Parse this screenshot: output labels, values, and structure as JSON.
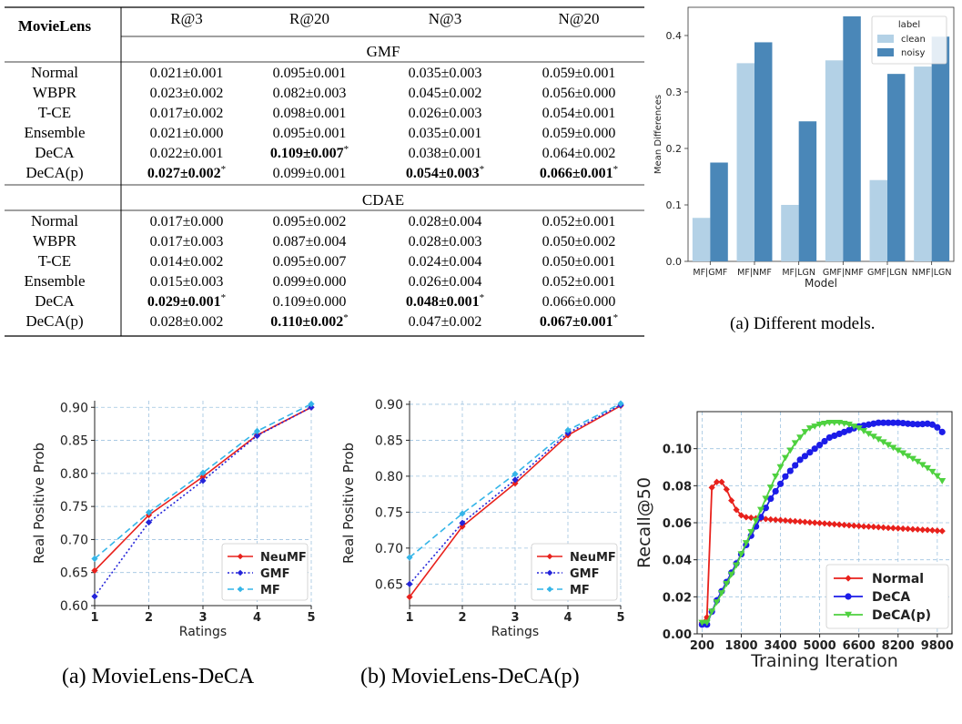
{
  "table": {
    "dataset": "MovieLens",
    "columns": [
      "R@3",
      "R@20",
      "N@3",
      "N@20"
    ],
    "sections": [
      {
        "name": "GMF",
        "rows": [
          {
            "method": "Normal",
            "cells": [
              {
                "v": "0.021±0.001"
              },
              {
                "v": "0.095±0.001"
              },
              {
                "v": "0.035±0.003"
              },
              {
                "v": "0.059±0.001"
              }
            ]
          },
          {
            "method": "WBPR",
            "cells": [
              {
                "v": "0.023±0.002"
              },
              {
                "v": "0.082±0.003"
              },
              {
                "v": "0.045±0.002"
              },
              {
                "v": "0.056±0.000"
              }
            ]
          },
          {
            "method": "T-CE",
            "cells": [
              {
                "v": "0.017±0.002"
              },
              {
                "v": "0.098±0.001"
              },
              {
                "v": "0.026±0.003"
              },
              {
                "v": "0.054±0.001"
              }
            ]
          },
          {
            "method": "Ensemble",
            "cells": [
              {
                "v": "0.021±0.000"
              },
              {
                "v": "0.095±0.001"
              },
              {
                "v": "0.035±0.001"
              },
              {
                "v": "0.059±0.000"
              }
            ]
          },
          {
            "method": "DeCA",
            "cells": [
              {
                "v": "0.022±0.001"
              },
              {
                "v": "0.109±0.007",
                "bold": true,
                "star": "*"
              },
              {
                "v": "0.038±0.001"
              },
              {
                "v": "0.064±0.002"
              }
            ]
          },
          {
            "method": "DeCA(p)",
            "cells": [
              {
                "v": "0.027±0.002",
                "bold": true,
                "star": "*"
              },
              {
                "v": "0.099±0.001"
              },
              {
                "v": "0.054±0.003",
                "bold": true,
                "star": "*"
              },
              {
                "v": "0.066±0.001",
                "bold": true,
                "star": "*"
              }
            ]
          }
        ]
      },
      {
        "name": "CDAE",
        "rows": [
          {
            "method": "Normal",
            "cells": [
              {
                "v": "0.017±0.000"
              },
              {
                "v": "0.095±0.002"
              },
              {
                "v": "0.028±0.004"
              },
              {
                "v": "0.052±0.001"
              }
            ]
          },
          {
            "method": "WBPR",
            "cells": [
              {
                "v": "0.017±0.003"
              },
              {
                "v": "0.087±0.004"
              },
              {
                "v": "0.028±0.003"
              },
              {
                "v": "0.050±0.002"
              }
            ]
          },
          {
            "method": "T-CE",
            "cells": [
              {
                "v": "0.014±0.002"
              },
              {
                "v": "0.095±0.007"
              },
              {
                "v": "0.024±0.004"
              },
              {
                "v": "0.050±0.001"
              }
            ]
          },
          {
            "method": "Ensemble",
            "cells": [
              {
                "v": "0.015±0.003"
              },
              {
                "v": "0.099±0.000"
              },
              {
                "v": "0.026±0.004"
              },
              {
                "v": "0.052±0.001"
              }
            ]
          },
          {
            "method": "DeCA",
            "cells": [
              {
                "v": "0.029±0.001",
                "bold": true,
                "star": "*"
              },
              {
                "v": "0.109±0.000"
              },
              {
                "v": "0.048±0.001",
                "bold": true,
                "star": "*"
              },
              {
                "v": "0.066±0.000"
              }
            ]
          },
          {
            "method": "DeCA(p)",
            "cells": [
              {
                "v": "0.028±0.002"
              },
              {
                "v": "0.110±0.002",
                "bold": true,
                "star": "*"
              },
              {
                "v": "0.047±0.002"
              },
              {
                "v": "0.067±0.001",
                "bold": true,
                "star": "*"
              }
            ]
          }
        ]
      }
    ]
  },
  "captions": {
    "fig_models": "(a)  Different models.",
    "fig_deca": "(a)  MovieLens-DeCA",
    "fig_decap": "(b)  MovieLens-DeCA(p)"
  },
  "chart_data": [
    {
      "type": "bar",
      "xlabel": "Model",
      "ylabel": "Mean Differences",
      "legend_title": "label",
      "legend_position": "top-right",
      "categories": [
        "MF|GMF",
        "MF|NMF",
        "MF|LGN",
        "GMF|NMF",
        "GMF|LGN",
        "NMF|LGN"
      ],
      "series": [
        {
          "name": "clean",
          "color": "#b3d1e6",
          "values": [
            0.077,
            0.351,
            0.1,
            0.356,
            0.144,
            0.345
          ]
        },
        {
          "name": "noisy",
          "color": "#4a87b8",
          "values": [
            0.175,
            0.388,
            0.248,
            0.434,
            0.332,
            0.398
          ]
        }
      ],
      "ylim": [
        0,
        0.45
      ],
      "yticks": [
        0.0,
        0.1,
        0.2,
        0.3,
        0.4
      ],
      "grid": false
    },
    {
      "type": "line",
      "xlabel": "Ratings",
      "ylabel": "Real Positive Prob",
      "x": [
        1,
        2,
        3,
        4,
        5
      ],
      "xticks": [
        1,
        2,
        3,
        4,
        5
      ],
      "ylim": [
        0.6,
        0.91
      ],
      "yticks": [
        0.6,
        0.65,
        0.7,
        0.75,
        0.8,
        0.85,
        0.9
      ],
      "grid": true,
      "legend_position": "bottom-right",
      "series": [
        {
          "name": "NeuMF",
          "color": "#e8211c",
          "dash": "solid",
          "values": [
            0.653,
            0.737,
            0.795,
            0.858,
            0.9
          ]
        },
        {
          "name": "GMF",
          "color": "#2424d9",
          "dash": "dotted",
          "values": [
            0.614,
            0.726,
            0.789,
            0.857,
            0.9
          ]
        },
        {
          "name": "MF",
          "color": "#35b5e8",
          "dash": "dashed",
          "values": [
            0.671,
            0.741,
            0.801,
            0.864,
            0.905
          ]
        }
      ]
    },
    {
      "type": "line",
      "xlabel": "Ratings",
      "ylabel": "Real Positive Prob",
      "x": [
        1,
        2,
        3,
        4,
        5
      ],
      "xticks": [
        1,
        2,
        3,
        4,
        5
      ],
      "ylim": [
        0.62,
        0.905
      ],
      "yticks": [
        0.65,
        0.7,
        0.75,
        0.8,
        0.85,
        0.9
      ],
      "grid": true,
      "legend_position": "bottom-right",
      "series": [
        {
          "name": "NeuMF",
          "color": "#e8211c",
          "dash": "solid",
          "values": [
            0.632,
            0.73,
            0.79,
            0.857,
            0.898
          ]
        },
        {
          "name": "GMF",
          "color": "#2424d9",
          "dash": "dotted",
          "values": [
            0.65,
            0.735,
            0.795,
            0.86,
            0.899
          ]
        },
        {
          "name": "MF",
          "color": "#35b5e8",
          "dash": "dashed",
          "values": [
            0.687,
            0.748,
            0.803,
            0.864,
            0.901
          ]
        }
      ]
    },
    {
      "type": "line",
      "xlabel": "Training Iteration",
      "ylabel": "Recall@50",
      "xlim": [
        0,
        10400
      ],
      "ylim": [
        0,
        0.12
      ],
      "xticks": [
        200,
        1800,
        3400,
        5000,
        6600,
        8200,
        9800
      ],
      "yticks": [
        0.0,
        0.02,
        0.04,
        0.06,
        0.08,
        0.1
      ],
      "grid": true,
      "legend_position": "bottom-right",
      "series": [
        {
          "name": "Normal",
          "color": "#e8211c",
          "marker": "diamond",
          "x": [
            200,
            400,
            600,
            800,
            1000,
            1200,
            1400,
            1600,
            1800,
            2000,
            2200,
            2400,
            2600,
            2800,
            3000,
            3200,
            3400,
            3600,
            3800,
            4000,
            4200,
            4400,
            4600,
            4800,
            5000,
            5200,
            5400,
            5600,
            5800,
            6000,
            6200,
            6400,
            6600,
            6800,
            7000,
            7200,
            7400,
            7600,
            7800,
            8000,
            8200,
            8400,
            8600,
            8800,
            9000,
            9200,
            9400,
            9600,
            9800,
            10000
          ],
          "y": [
            0.006,
            0.009,
            0.079,
            0.082,
            0.082,
            0.078,
            0.072,
            0.067,
            0.064,
            0.063,
            0.0627,
            0.0624,
            0.0622,
            0.062,
            0.0618,
            0.0616,
            0.0614,
            0.0612,
            0.061,
            0.0608,
            0.0606,
            0.0604,
            0.0602,
            0.06,
            0.0598,
            0.0596,
            0.0594,
            0.0592,
            0.059,
            0.0588,
            0.0586,
            0.0584,
            0.0582,
            0.058,
            0.0579,
            0.0578,
            0.0576,
            0.0574,
            0.0572,
            0.0571,
            0.057,
            0.0568,
            0.0567,
            0.0565,
            0.0564,
            0.0562,
            0.0561,
            0.0559,
            0.0557,
            0.0555
          ]
        },
        {
          "name": "DeCA",
          "color": "#1c1ce8",
          "marker": "circle",
          "x": [
            200,
            400,
            600,
            800,
            1000,
            1200,
            1400,
            1600,
            1800,
            2000,
            2200,
            2400,
            2600,
            2800,
            3000,
            3200,
            3400,
            3600,
            3800,
            4000,
            4200,
            4400,
            4600,
            4800,
            5000,
            5200,
            5400,
            5600,
            5800,
            6000,
            6200,
            6400,
            6600,
            6800,
            7000,
            7200,
            7400,
            7600,
            7800,
            8000,
            8200,
            8400,
            8600,
            8800,
            9000,
            9200,
            9400,
            9600,
            9800,
            10000
          ],
          "y": [
            0.005,
            0.005,
            0.012,
            0.018,
            0.023,
            0.028,
            0.033,
            0.038,
            0.043,
            0.048,
            0.053,
            0.058,
            0.063,
            0.068,
            0.073,
            0.077,
            0.081,
            0.085,
            0.088,
            0.091,
            0.094,
            0.096,
            0.098,
            0.1,
            0.102,
            0.104,
            0.106,
            0.107,
            0.108,
            0.109,
            0.11,
            0.111,
            0.112,
            0.1125,
            0.113,
            0.1135,
            0.114,
            0.114,
            0.114,
            0.114,
            0.114,
            0.1138,
            0.1135,
            0.1133,
            0.1132,
            0.1133,
            0.1135,
            0.113,
            0.1115,
            0.109
          ]
        },
        {
          "name": "DeCA(p)",
          "color": "#4ed13f",
          "marker": "triangle-down",
          "x": [
            200,
            400,
            600,
            800,
            1000,
            1200,
            1400,
            1600,
            1800,
            2000,
            2200,
            2400,
            2600,
            2800,
            3000,
            3200,
            3400,
            3600,
            3800,
            4000,
            4200,
            4400,
            4600,
            4800,
            5000,
            5200,
            5400,
            5600,
            5800,
            6000,
            6200,
            6400,
            6600,
            6800,
            7000,
            7200,
            7400,
            7600,
            7800,
            8000,
            8200,
            8400,
            8600,
            8800,
            9000,
            9200,
            9400,
            9600,
            9800,
            10000
          ],
          "y": [
            0.006,
            0.006,
            0.012,
            0.017,
            0.022,
            0.027,
            0.032,
            0.037,
            0.043,
            0.049,
            0.055,
            0.061,
            0.067,
            0.073,
            0.079,
            0.085,
            0.09,
            0.095,
            0.099,
            0.103,
            0.106,
            0.109,
            0.111,
            0.112,
            0.113,
            0.1135,
            0.114,
            0.114,
            0.114,
            0.1135,
            0.113,
            0.112,
            0.111,
            0.1095,
            0.108,
            0.1065,
            0.105,
            0.1035,
            0.102,
            0.1005,
            0.099,
            0.0975,
            0.096,
            0.0945,
            0.093,
            0.0912,
            0.0895,
            0.0875,
            0.0852,
            0.0825
          ]
        }
      ]
    }
  ]
}
